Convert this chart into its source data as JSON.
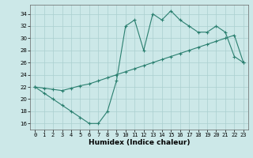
{
  "xlabel": "Humidex (Indice chaleur)",
  "line1_x": [
    0,
    1,
    2,
    3,
    4,
    5,
    6,
    7,
    8,
    9,
    10,
    11,
    12,
    13,
    14,
    15,
    16,
    17,
    18,
    19,
    20,
    21,
    22,
    23
  ],
  "line1_y": [
    22,
    21,
    20,
    19,
    18,
    17,
    16,
    16,
    18,
    23,
    32,
    33,
    28,
    34,
    33,
    34.5,
    33,
    32,
    31,
    31,
    32,
    31,
    27,
    26
  ],
  "line2_x": [
    0,
    1,
    2,
    3,
    4,
    5,
    6,
    7,
    8,
    9,
    10,
    11,
    12,
    13,
    14,
    15,
    16,
    17,
    18,
    19,
    20,
    21,
    22,
    23
  ],
  "line2_y": [
    22,
    21.8,
    21.6,
    21.4,
    21.8,
    22.2,
    22.5,
    23.0,
    23.5,
    24.0,
    24.5,
    25.0,
    25.5,
    26.0,
    26.5,
    27.0,
    27.5,
    28.0,
    28.5,
    29.0,
    29.5,
    30.0,
    30.5,
    26
  ],
  "line_color": "#2a7f6f",
  "bg_color": "#cce8e8",
  "grid_color": "#aacfcf",
  "xlim": [
    -0.5,
    23.5
  ],
  "ylim": [
    15,
    35.5
  ],
  "yticks": [
    16,
    18,
    20,
    22,
    24,
    26,
    28,
    30,
    32,
    34
  ],
  "xticks": [
    0,
    1,
    2,
    3,
    4,
    5,
    6,
    7,
    8,
    9,
    10,
    11,
    12,
    13,
    14,
    15,
    16,
    17,
    18,
    19,
    20,
    21,
    22,
    23
  ],
  "ylabel_fontsize": 5.5,
  "xlabel_fontsize": 6.5,
  "tick_fontsize": 5.0
}
